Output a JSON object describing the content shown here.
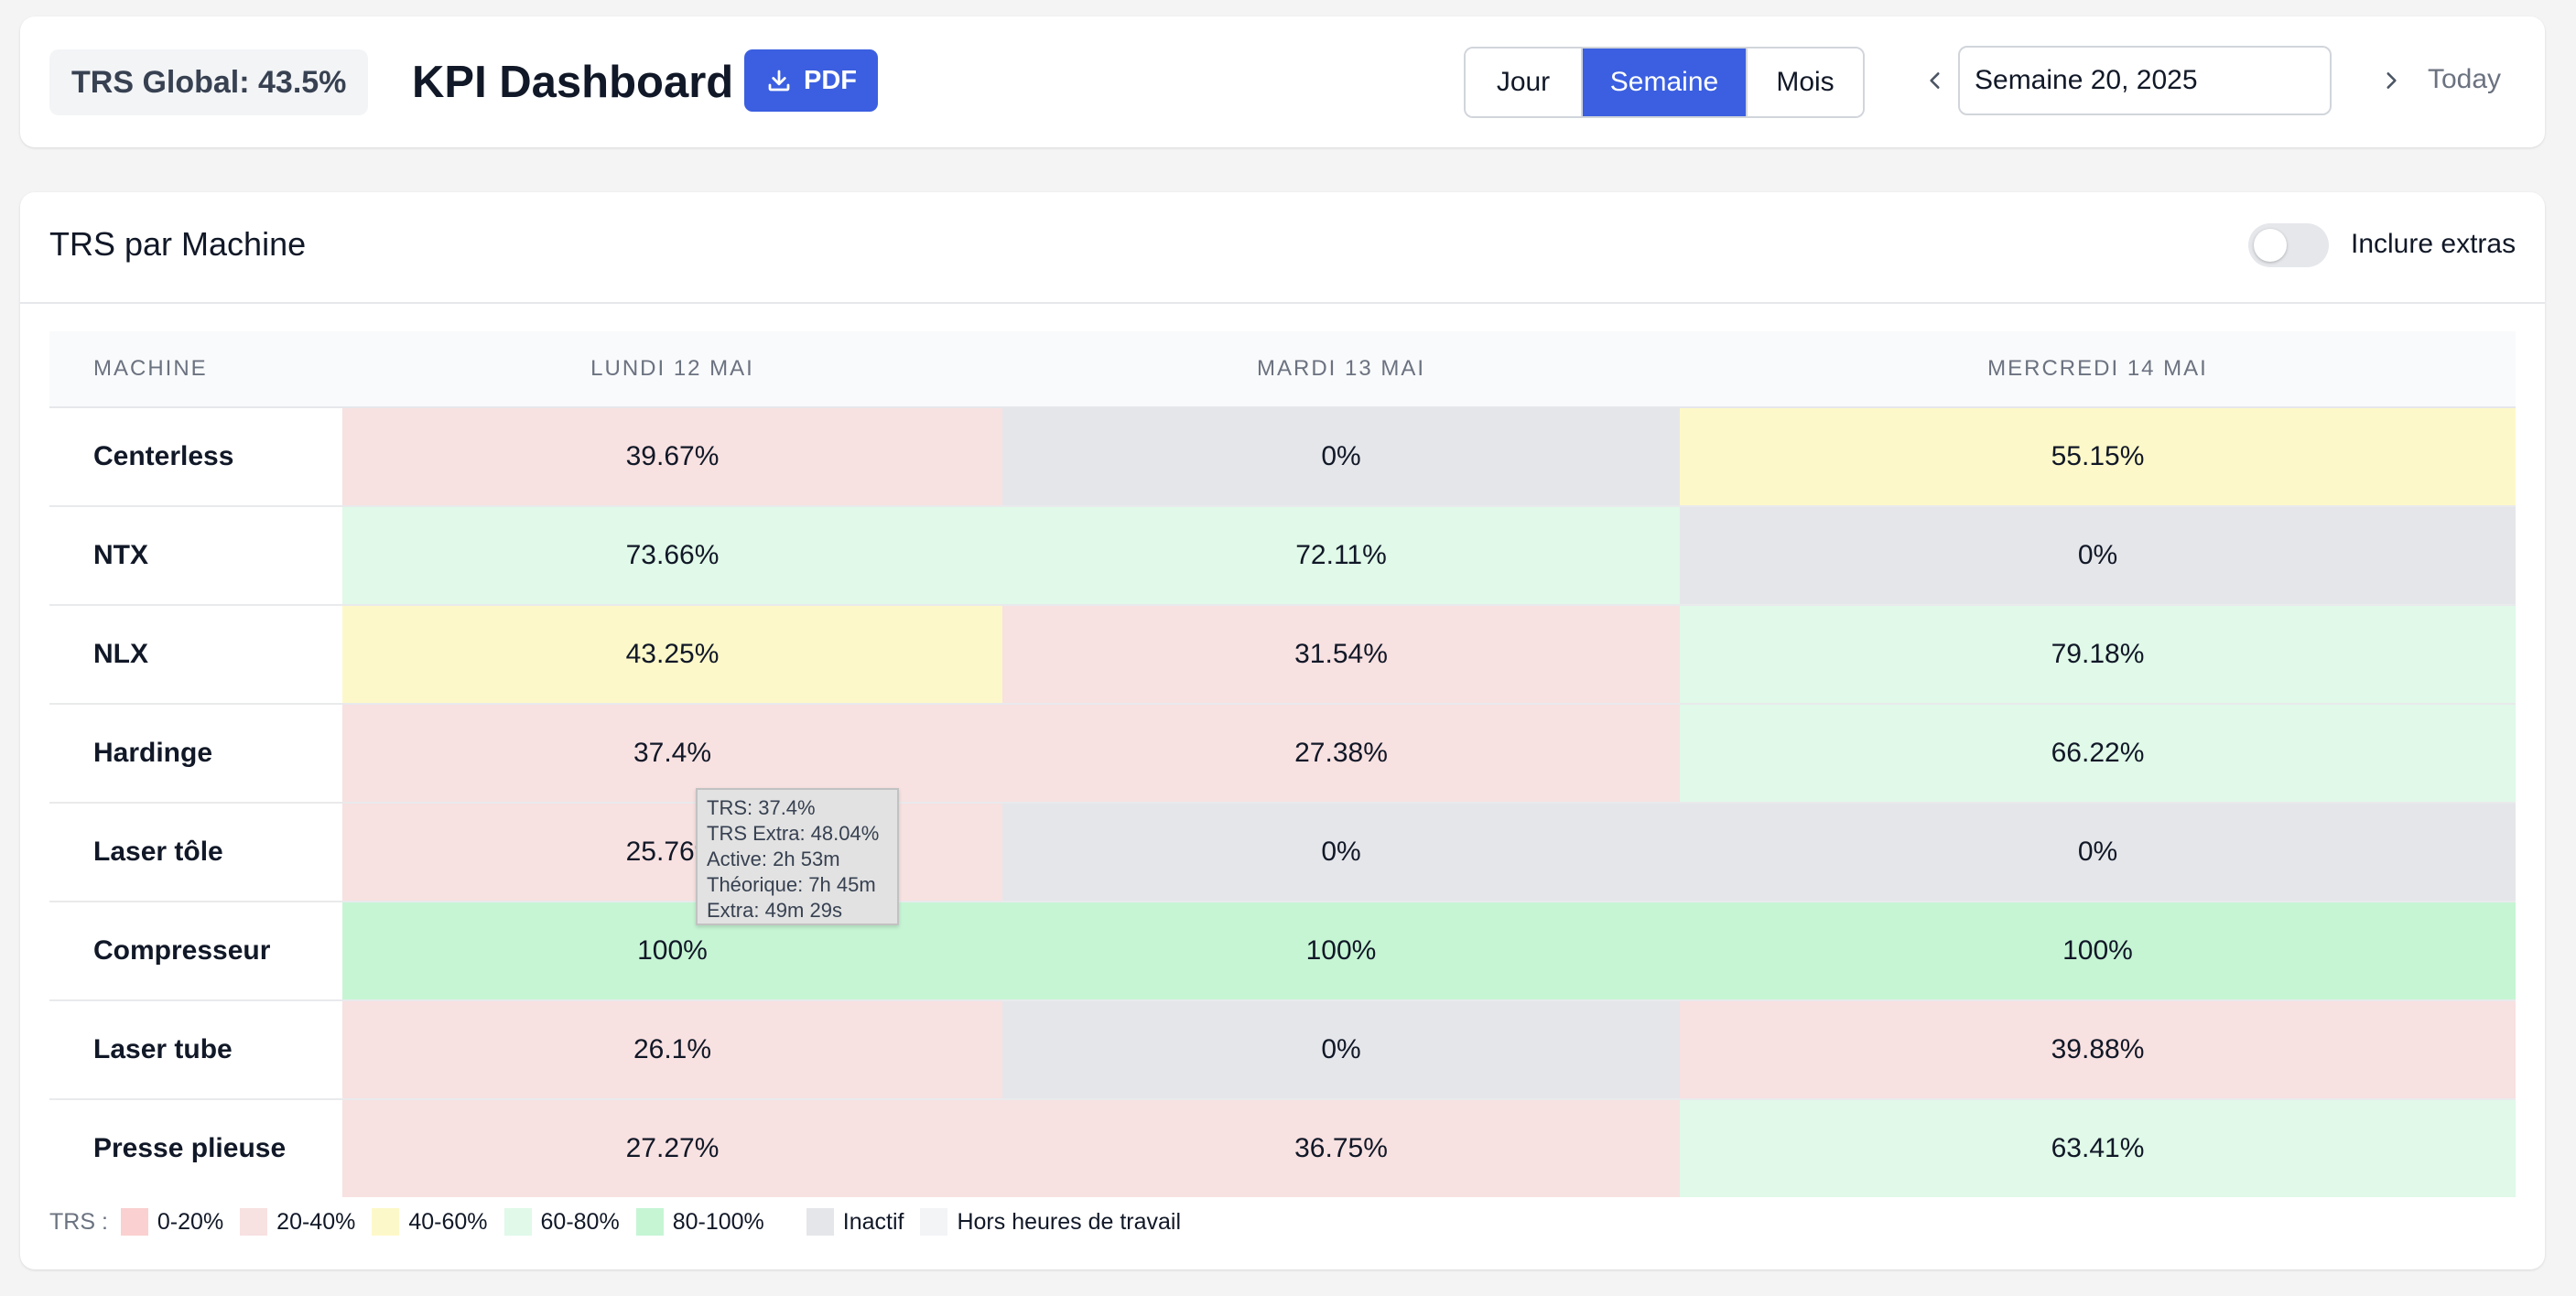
{
  "header": {
    "trs_global": "TRS Global: 43.5%",
    "title": "KPI Dashboard",
    "pdf_label": "PDF",
    "period_tabs": [
      "Jour",
      "Semaine",
      "Mois"
    ],
    "active_tab": "Semaine",
    "week_value": "Semaine 20, 2025",
    "today_label": "Today",
    "accent_color": "#3b5fe0"
  },
  "main": {
    "title": "TRS par Machine",
    "toggle_label": "Inclure extras",
    "toggle_on": false,
    "columns": [
      "MACHINE",
      "LUNDI 12 MAI",
      "MARDI 13 MAI",
      "MERCREDI 14 MAI"
    ],
    "rows": [
      {
        "machine": "Centerless",
        "values": [
          "39.67%",
          "0%",
          "55.15%"
        ],
        "levels": [
          "20-40",
          "inactive",
          "40-60"
        ]
      },
      {
        "machine": "NTX",
        "values": [
          "73.66%",
          "72.11%",
          "0%"
        ],
        "levels": [
          "60-80",
          "60-80",
          "inactive"
        ]
      },
      {
        "machine": "NLX",
        "values": [
          "43.25%",
          "31.54%",
          "79.18%"
        ],
        "levels": [
          "40-60",
          "20-40",
          "60-80"
        ]
      },
      {
        "machine": "Hardinge",
        "values": [
          "37.4%",
          "27.38%",
          "66.22%"
        ],
        "levels": [
          "20-40",
          "20-40",
          "60-80"
        ]
      },
      {
        "machine": "Laser tôle",
        "values": [
          "25.76%",
          "0%",
          "0%"
        ],
        "levels": [
          "20-40",
          "inactive",
          "inactive"
        ]
      },
      {
        "machine": "Compresseur",
        "values": [
          "100%",
          "100%",
          "100%"
        ],
        "levels": [
          "80-100",
          "80-100",
          "80-100"
        ]
      },
      {
        "machine": "Laser tube",
        "values": [
          "26.1%",
          "0%",
          "39.88%"
        ],
        "levels": [
          "20-40",
          "inactive",
          "20-40"
        ]
      },
      {
        "machine": "Presse plieuse",
        "values": [
          "27.27%",
          "36.75%",
          "63.41%"
        ],
        "levels": [
          "20-40",
          "20-40",
          "60-80"
        ]
      }
    ],
    "tooltip": [
      "TRS: 37.4%",
      "TRS Extra: 48.04%",
      "Active: 2h 53m",
      "Théorique: 7h 45m",
      "Extra: 49m 29s"
    ]
  },
  "legend": {
    "label": "TRS :",
    "items": [
      {
        "key": "0-20",
        "label": "0-20%",
        "color": "#fbd0d0"
      },
      {
        "key": "20-40",
        "label": "20-40%",
        "color": "#f8e1e1"
      },
      {
        "key": "40-60",
        "label": "40-60%",
        "color": "#fdf8c9"
      },
      {
        "key": "60-80",
        "label": "60-80%",
        "color": "#e0f9e8"
      },
      {
        "key": "80-100",
        "label": "80-100%",
        "color": "#c6f5d4"
      },
      {
        "key": "inactive",
        "label": "Inactif",
        "color": "#e5e6ea"
      },
      {
        "key": "off",
        "label": "Hors heures de travail",
        "color": "#f3f4f6"
      }
    ]
  }
}
